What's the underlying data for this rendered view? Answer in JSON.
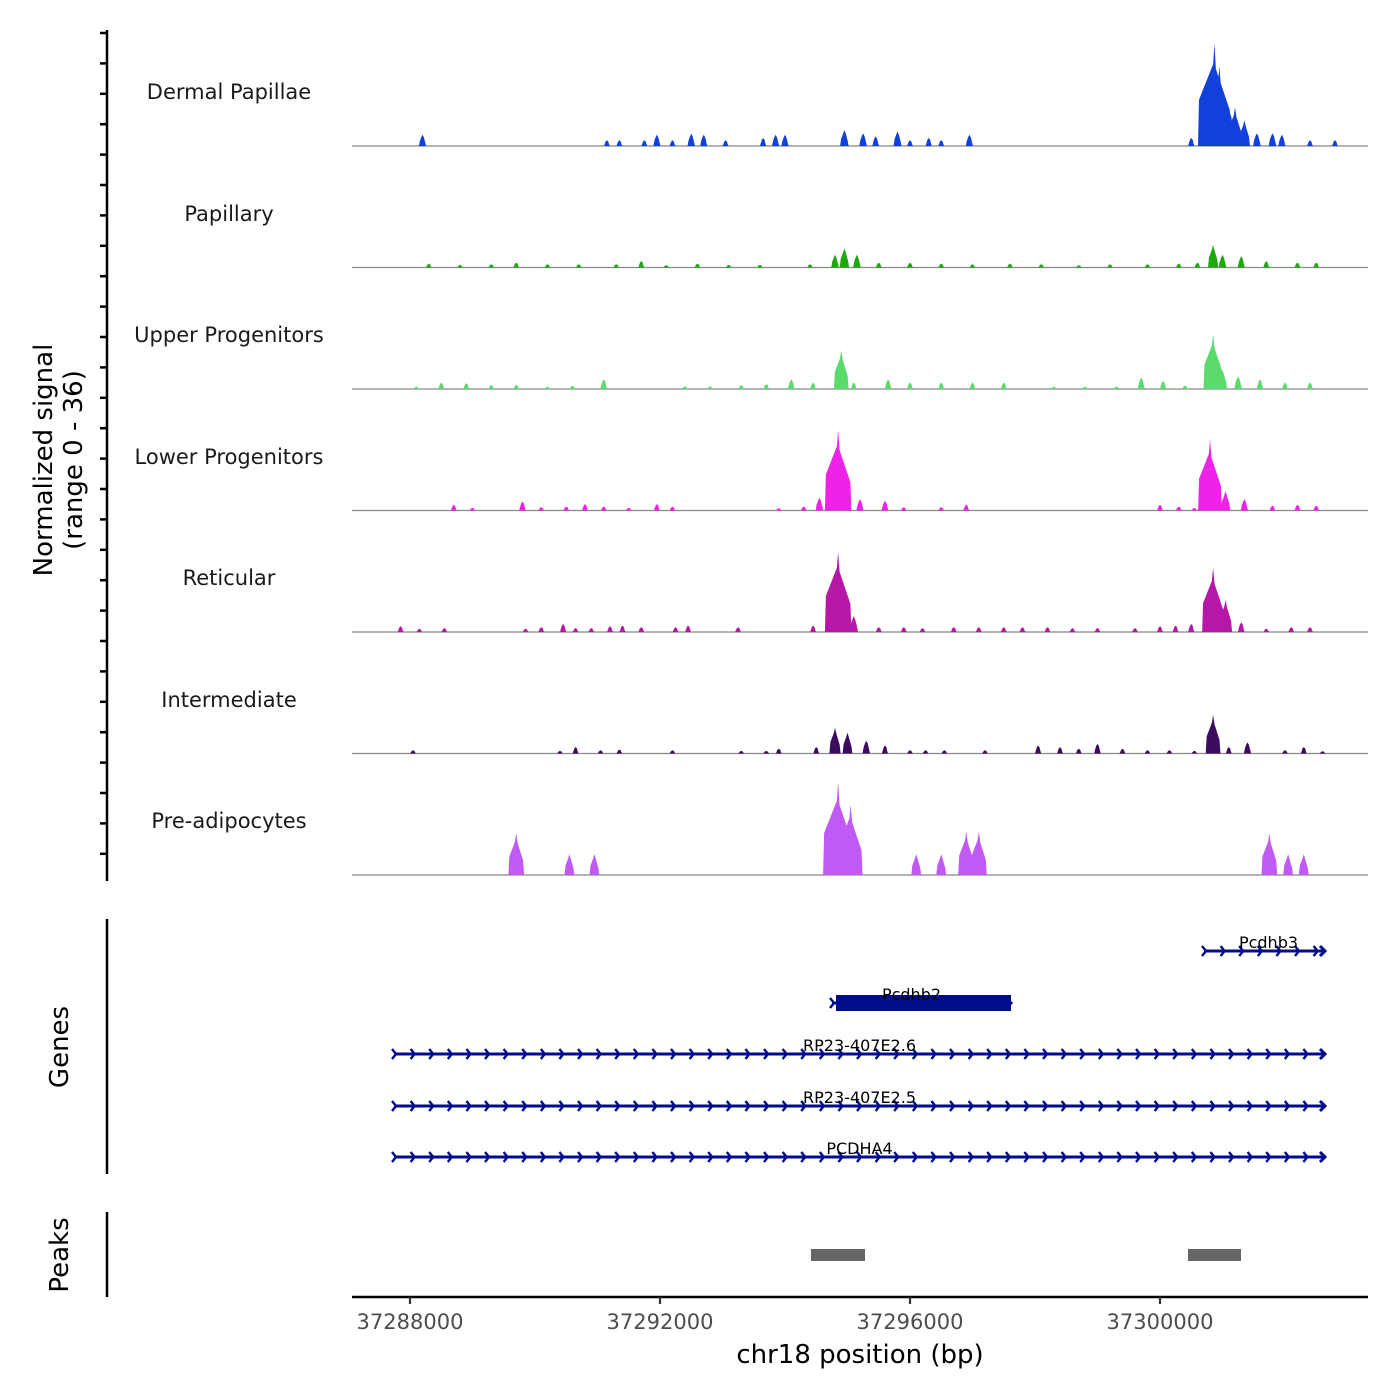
{
  "chart_data": {
    "type": "area",
    "title": "",
    "ylabel": "Normalized signal",
    "ylabel_sub": "(range 0 - 36)",
    "ylim": [
      0,
      36
    ],
    "xlabel": "chr18 position (bp)",
    "xlim": [
      37287072,
      37303328
    ],
    "x_ticks": [
      37288000,
      37292000,
      37296000,
      37300000
    ],
    "x_tick_labels": [
      "37288000",
      "37292000",
      "37296000",
      "37300000"
    ],
    "grid": false,
    "tracks": [
      {
        "name": "Dermal Papillae",
        "color": "#1240DB",
        "peaks": [
          [
            37288200,
            3.5
          ],
          [
            37291150,
            1.8
          ],
          [
            37291350,
            1.8
          ],
          [
            37291750,
            1.8
          ],
          [
            37291950,
            3.5
          ],
          [
            37292200,
            1.8
          ],
          [
            37292500,
            3.8
          ],
          [
            37292700,
            3.5
          ],
          [
            37293050,
            1.8
          ],
          [
            37293650,
            2.5
          ],
          [
            37293850,
            3.5
          ],
          [
            37294000,
            3.5
          ],
          [
            37294950,
            5
          ],
          [
            37295250,
            4
          ],
          [
            37295450,
            3
          ],
          [
            37295800,
            4.5
          ],
          [
            37296000,
            1.8
          ],
          [
            37296300,
            2.5
          ],
          [
            37296500,
            1.8
          ],
          [
            37296950,
            3.5
          ],
          [
            37300500,
            2.5
          ],
          [
            37300800,
            15
          ],
          [
            37300870,
            32
          ],
          [
            37300950,
            25
          ],
          [
            37301050,
            12
          ],
          [
            37301200,
            12
          ],
          [
            37301350,
            8
          ],
          [
            37301550,
            4
          ],
          [
            37301800,
            4
          ],
          [
            37301950,
            3.5
          ],
          [
            37302400,
            1.8
          ],
          [
            37302800,
            1.8
          ]
        ]
      },
      {
        "name": "Papillary",
        "color": "#1DA90D",
        "peaks": [
          [
            37288300,
            1.2
          ],
          [
            37288800,
            0.8
          ],
          [
            37289300,
            1
          ],
          [
            37289700,
            1.5
          ],
          [
            37290200,
            1
          ],
          [
            37290700,
            1
          ],
          [
            37291300,
            1
          ],
          [
            37291700,
            2
          ],
          [
            37292100,
            0.7
          ],
          [
            37292600,
            1.2
          ],
          [
            37293100,
            0.8
          ],
          [
            37293600,
            0.8
          ],
          [
            37294400,
            1
          ],
          [
            37294800,
            4
          ],
          [
            37294950,
            6
          ],
          [
            37295150,
            4
          ],
          [
            37295500,
            1.5
          ],
          [
            37296000,
            1.5
          ],
          [
            37296500,
            1.2
          ],
          [
            37297000,
            1
          ],
          [
            37297600,
            1.2
          ],
          [
            37298100,
            1
          ],
          [
            37298700,
            0.7
          ],
          [
            37299200,
            1
          ],
          [
            37299800,
            1
          ],
          [
            37300300,
            1.2
          ],
          [
            37300600,
            1.5
          ],
          [
            37300850,
            7
          ],
          [
            37301000,
            4
          ],
          [
            37301300,
            3.5
          ],
          [
            37301700,
            2
          ],
          [
            37302200,
            1.5
          ],
          [
            37302500,
            1.5
          ]
        ]
      },
      {
        "name": "Upper Progenitors",
        "color": "#5BDB6C",
        "peaks": [
          [
            37288100,
            0.7
          ],
          [
            37288500,
            2
          ],
          [
            37288900,
            1.8
          ],
          [
            37289300,
            1.2
          ],
          [
            37289700,
            1.2
          ],
          [
            37290200,
            0.7
          ],
          [
            37290600,
            1
          ],
          [
            37291100,
            3
          ],
          [
            37292400,
            0.8
          ],
          [
            37292800,
            0.8
          ],
          [
            37293300,
            1.2
          ],
          [
            37293700,
            1.5
          ],
          [
            37294100,
            3
          ],
          [
            37294450,
            2
          ],
          [
            37294900,
            12
          ],
          [
            37295100,
            2
          ],
          [
            37295650,
            3
          ],
          [
            37296000,
            2
          ],
          [
            37296500,
            2
          ],
          [
            37297000,
            2
          ],
          [
            37297500,
            2
          ],
          [
            37298300,
            0.7
          ],
          [
            37298800,
            0.7
          ],
          [
            37299300,
            0.7
          ],
          [
            37299700,
            3.5
          ],
          [
            37300050,
            2.5
          ],
          [
            37300400,
            1
          ],
          [
            37300850,
            17
          ],
          [
            37301000,
            6
          ],
          [
            37301250,
            4
          ],
          [
            37301600,
            3
          ],
          [
            37302000,
            2
          ],
          [
            37302400,
            2
          ]
        ]
      },
      {
        "name": "Lower Progenitors",
        "color": "#EF22E8",
        "peaks": [
          [
            37288700,
            1.8
          ],
          [
            37289000,
            0.8
          ],
          [
            37289800,
            2.8
          ],
          [
            37290100,
            1
          ],
          [
            37290500,
            1.2
          ],
          [
            37290800,
            2
          ],
          [
            37291100,
            1.2
          ],
          [
            37291500,
            0.8
          ],
          [
            37291950,
            2
          ],
          [
            37292200,
            1.2
          ],
          [
            37293900,
            0.7
          ],
          [
            37294300,
            1.2
          ],
          [
            37294550,
            4
          ],
          [
            37294850,
            25
          ],
          [
            37295200,
            3.5
          ],
          [
            37295600,
            3
          ],
          [
            37295900,
            1
          ],
          [
            37296500,
            1
          ],
          [
            37296900,
            1.8
          ],
          [
            37300000,
            1.8
          ],
          [
            37300300,
            1.2
          ],
          [
            37300550,
            0.8
          ],
          [
            37300800,
            22
          ],
          [
            37301050,
            6
          ],
          [
            37301350,
            3.5
          ],
          [
            37301800,
            1.5
          ],
          [
            37302200,
            1.8
          ],
          [
            37302500,
            1.5
          ]
        ]
      },
      {
        "name": "Reticular",
        "color": "#B717A6",
        "peaks": [
          [
            37287850,
            1.8
          ],
          [
            37288150,
            1
          ],
          [
            37288550,
            1.2
          ],
          [
            37289850,
            1
          ],
          [
            37290100,
            1.5
          ],
          [
            37290450,
            2.5
          ],
          [
            37290650,
            1.2
          ],
          [
            37290900,
            1.2
          ],
          [
            37291200,
            1.8
          ],
          [
            37291400,
            2
          ],
          [
            37291700,
            1.5
          ],
          [
            37292250,
            1.5
          ],
          [
            37292450,
            2
          ],
          [
            37293250,
            1.5
          ],
          [
            37294450,
            2
          ],
          [
            37294850,
            25
          ],
          [
            37295100,
            5
          ],
          [
            37295500,
            1.5
          ],
          [
            37295900,
            1.5
          ],
          [
            37296200,
            1.2
          ],
          [
            37296700,
            1.5
          ],
          [
            37297100,
            1.5
          ],
          [
            37297500,
            1.5
          ],
          [
            37297800,
            1.5
          ],
          [
            37298200,
            1.5
          ],
          [
            37298600,
            1.2
          ],
          [
            37299000,
            1.2
          ],
          [
            37299600,
            1.2
          ],
          [
            37300000,
            1.8
          ],
          [
            37300250,
            2
          ],
          [
            37300500,
            2.5
          ],
          [
            37300850,
            20
          ],
          [
            37301050,
            10
          ],
          [
            37301300,
            3
          ],
          [
            37301700,
            1
          ],
          [
            37302100,
            1.5
          ],
          [
            37302400,
            1.5
          ]
        ]
      },
      {
        "name": "Intermediate",
        "color": "#3C0B5E",
        "peaks": [
          [
            37288050,
            1
          ],
          [
            37290400,
            0.8
          ],
          [
            37290650,
            2
          ],
          [
            37291050,
            1
          ],
          [
            37291350,
            1.2
          ],
          [
            37292200,
            1
          ],
          [
            37293300,
            0.8
          ],
          [
            37293700,
            0.8
          ],
          [
            37293900,
            1.5
          ],
          [
            37294500,
            2
          ],
          [
            37294800,
            8
          ],
          [
            37295000,
            6.5
          ],
          [
            37295300,
            4
          ],
          [
            37295600,
            2.5
          ],
          [
            37296000,
            1
          ],
          [
            37296250,
            1
          ],
          [
            37296550,
            1
          ],
          [
            37297200,
            1
          ],
          [
            37298050,
            2.5
          ],
          [
            37298400,
            2
          ],
          [
            37298700,
            1.5
          ],
          [
            37299000,
            3
          ],
          [
            37299400,
            1.5
          ],
          [
            37299800,
            1
          ],
          [
            37300150,
            1
          ],
          [
            37300550,
            0.8
          ],
          [
            37300850,
            12
          ],
          [
            37301100,
            2
          ],
          [
            37301400,
            3.5
          ],
          [
            37302000,
            1
          ],
          [
            37302300,
            2
          ],
          [
            37302600,
            0.7
          ]
        ]
      },
      {
        "name": "Pre-adipocytes",
        "color": "#C159F5",
        "peaks": [
          [
            37289700,
            13
          ],
          [
            37290550,
            6.5
          ],
          [
            37290950,
            6.5
          ],
          [
            37294850,
            29
          ],
          [
            37295050,
            22
          ],
          [
            37296100,
            6.5
          ],
          [
            37296500,
            6.5
          ],
          [
            37296900,
            13.5
          ],
          [
            37297100,
            13.5
          ],
          [
            37301750,
            13
          ],
          [
            37302050,
            6.5
          ],
          [
            37302300,
            6.5
          ]
        ]
      }
    ],
    "genes_track": {
      "label": "Genes",
      "color": "#000C8B",
      "genes": [
        {
          "name": "Pcdhb3",
          "start": 37300704,
          "end": 37302640,
          "strand": "+",
          "row": 0
        },
        {
          "name": "Pcdhb2",
          "start": 37294752,
          "end": 37297616,
          "strand": "+",
          "row": 1,
          "exon": [
            37294816,
            37297616
          ]
        },
        {
          "name": "RP23-407E2.6",
          "start": 37287744,
          "end": 37302640,
          "strand": "+",
          "row": 2
        },
        {
          "name": "RP23-407E2.5",
          "start": 37287744,
          "end": 37302640,
          "strand": "+",
          "row": 3
        },
        {
          "name": "PCDHA4",
          "start": 37287744,
          "end": 37302640,
          "strand": "+",
          "row": 4
        }
      ]
    },
    "peaks_track": {
      "label": "Peaks",
      "color": "#666666",
      "regions": [
        [
          37294416,
          37295280
        ],
        [
          37300448,
          37301296
        ]
      ]
    }
  }
}
